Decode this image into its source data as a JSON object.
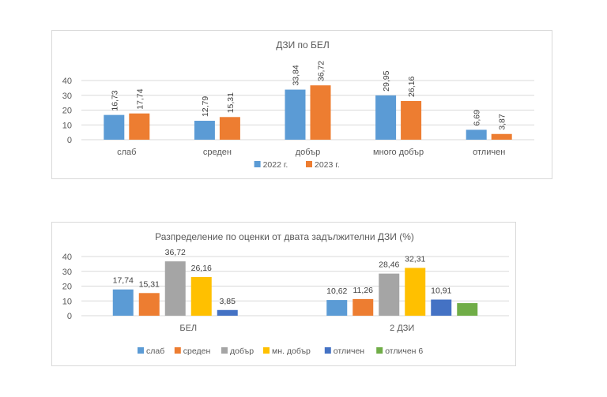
{
  "chart_data": [
    {
      "type": "bar",
      "title": "ДЗИ по БЕЛ",
      "xlabel": "",
      "ylabel": "",
      "categories": [
        "слаб",
        "среден",
        "добър",
        "много добър",
        "отличен"
      ],
      "series": [
        {
          "name": "2022 г.",
          "color": "#5b9bd5",
          "values": [
            16.73,
            12.79,
            33.84,
            29.95,
            6.69
          ],
          "labels": [
            "16,73",
            "12,79",
            "33,84",
            "29,95",
            "6,69"
          ]
        },
        {
          "name": "2023 г.",
          "color": "#ed7d31",
          "values": [
            17.74,
            15.31,
            36.72,
            26.16,
            3.87
          ],
          "labels": [
            "17,74",
            "15,31",
            "36,72",
            "26,16",
            "3,87"
          ]
        }
      ],
      "ylim": [
        0,
        40
      ],
      "yticks": [
        "0",
        "10",
        "20",
        "30",
        "40"
      ],
      "grid": true,
      "data_label_orientation": "vertical",
      "legend_position": "bottom"
    },
    {
      "type": "bar",
      "title": "Разпределение по оценки от двата задължителни ДЗИ (%)",
      "xlabel": "",
      "ylabel": "",
      "categories": [
        "БЕЛ",
        "2 ДЗИ"
      ],
      "series": [
        {
          "name": "слаб",
          "color": "#5b9bd5",
          "values": [
            17.74,
            10.62
          ],
          "labels": [
            "17,74",
            "10,62"
          ]
        },
        {
          "name": "среден",
          "color": "#ed7d31",
          "values": [
            15.31,
            11.26
          ],
          "labels": [
            "15,31",
            "11,26"
          ]
        },
        {
          "name": "добър",
          "color": "#a5a5a5",
          "values": [
            36.72,
            28.46
          ],
          "labels": [
            "36,72",
            "28,46"
          ]
        },
        {
          "name": "мн. добър",
          "color": "#ffc000",
          "values": [
            26.16,
            32.31
          ],
          "labels": [
            "26,16",
            "32,31"
          ]
        },
        {
          "name": "отличен",
          "color": "#4472c4",
          "values": [
            3.85,
            10.91
          ],
          "labels": [
            "3,85",
            "10,91"
          ]
        },
        {
          "name": "отличен 6",
          "color": "#70ad47",
          "values": [
            null,
            8.5
          ],
          "labels": [
            null,
            null
          ]
        }
      ],
      "ylim": [
        0,
        40
      ],
      "yticks": [
        "0",
        "10",
        "20",
        "30",
        "40"
      ],
      "grid": true,
      "data_label_orientation": "horizontal",
      "legend_position": "bottom"
    }
  ]
}
